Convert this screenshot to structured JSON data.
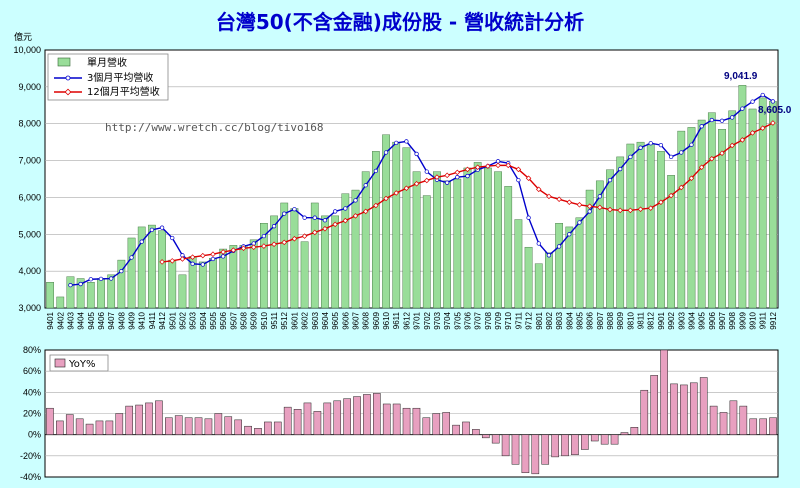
{
  "title": "台灣50(不含金融)成份股 - 營收統計分析",
  "watermark": "http://www.wretch.cc/blog/tivo168",
  "chart_data": [
    {
      "type": "bar+line",
      "ylabel": "億元",
      "ylim": [
        3000,
        10000
      ],
      "yticks": [
        "3,000",
        "4,000",
        "5,000",
        "6,000",
        "7,000",
        "8,000",
        "9,000",
        "10,000"
      ],
      "legend_position": "top-left",
      "grid": true,
      "categories": [
        "9401",
        "9402",
        "9403",
        "9404",
        "9405",
        "9406",
        "9407",
        "9408",
        "9409",
        "9410",
        "9411",
        "9412",
        "9501",
        "9502",
        "9503",
        "9504",
        "9505",
        "9506",
        "9507",
        "9508",
        "9509",
        "9510",
        "9511",
        "9512",
        "9601",
        "9602",
        "9603",
        "9604",
        "9605",
        "9606",
        "9607",
        "9608",
        "9609",
        "9610",
        "9611",
        "9612",
        "9701",
        "9702",
        "9703",
        "9704",
        "9705",
        "9706",
        "9707",
        "9708",
        "9709",
        "9710",
        "9711",
        "9712",
        "9801",
        "9802",
        "9803",
        "9804",
        "9805",
        "9806",
        "9807",
        "9808",
        "9809",
        "9810",
        "9811",
        "9812",
        "9901",
        "9902",
        "9903",
        "9904",
        "9905",
        "9906",
        "9907",
        "9908",
        "9909",
        "9910",
        "9911",
        "9912"
      ],
      "series": [
        {
          "name": "單月營收",
          "kind": "bar",
          "color": "#99dd99",
          "values": [
            3700,
            3300,
            3850,
            3800,
            3700,
            3800,
            3900,
            4300,
            4900,
            5200,
            5250,
            5100,
            4300,
            3900,
            4400,
            4250,
            4350,
            4600,
            4700,
            4700,
            4850,
            5300,
            5500,
            5850,
            5700,
            4800,
            5850,
            5500,
            5500,
            6100,
            6200,
            6700,
            7250,
            7700,
            7500,
            7350,
            6700,
            6050,
            6700,
            6450,
            6500,
            6800,
            6950,
            6800,
            6700,
            6300,
            5400,
            4650,
            4200,
            4500,
            5300,
            5200,
            5450,
            6200,
            6450,
            6750,
            7100,
            7450,
            7500,
            7450,
            7250,
            6600,
            7800,
            7900,
            8100,
            8300,
            7850,
            8350,
            9041.9,
            8400,
            8700,
            8605
          ]
        },
        {
          "name": "3個月平均營收",
          "kind": "line",
          "color": "#0000cc",
          "values": [
            null,
            null,
            3620,
            3650,
            3780,
            3790,
            3800,
            4000,
            4370,
            4800,
            5120,
            5180,
            4900,
            4430,
            4200,
            4180,
            4330,
            4400,
            4550,
            4670,
            4750,
            4950,
            5220,
            5560,
            5680,
            5450,
            5450,
            5380,
            5620,
            5700,
            5920,
            6330,
            6720,
            7220,
            7480,
            7520,
            7180,
            6700,
            6480,
            6400,
            6550,
            6580,
            6750,
            6850,
            6980,
            6930,
            6470,
            5450,
            4750,
            4430,
            4670,
            5000,
            5320,
            5620,
            6030,
            6470,
            6770,
            7100,
            7350,
            7470,
            7420,
            7100,
            7220,
            7430,
            7930,
            8100,
            8080,
            8170,
            8410,
            8600,
            8780,
            8605
          ]
        },
        {
          "name": "12個月平均營收",
          "kind": "line",
          "color": "#dd0000",
          "values": [
            null,
            null,
            null,
            null,
            null,
            null,
            null,
            null,
            null,
            null,
            null,
            4250,
            4280,
            4330,
            4380,
            4420,
            4460,
            4520,
            4570,
            4620,
            4650,
            4680,
            4730,
            4780,
            4880,
            4950,
            5050,
            5150,
            5270,
            5370,
            5500,
            5620,
            5780,
            5970,
            6120,
            6250,
            6370,
            6460,
            6550,
            6600,
            6680,
            6760,
            6820,
            6850,
            6870,
            6870,
            6760,
            6520,
            6220,
            6030,
            5950,
            5870,
            5800,
            5760,
            5730,
            5670,
            5650,
            5650,
            5680,
            5710,
            5870,
            6050,
            6270,
            6520,
            6820,
            7050,
            7200,
            7410,
            7560,
            7750,
            7880,
            8020
          ]
        }
      ],
      "annotations": [
        "9,041.9",
        "8,605.0"
      ]
    },
    {
      "type": "bar",
      "ylim": [
        -40,
        80
      ],
      "yticks": [
        "-40%",
        "-20%",
        "0%",
        "20%",
        "40%",
        "60%",
        "80%"
      ],
      "legend_position": "top-left",
      "grid": true,
      "series": [
        {
          "name": "YoY%",
          "color": "#e8a0c0",
          "values": [
            25,
            13,
            19,
            15,
            10,
            13,
            13,
            20,
            27,
            28,
            30,
            32,
            16,
            18,
            16,
            16,
            15,
            20,
            17,
            14,
            8,
            6,
            12,
            12,
            26,
            24,
            30,
            22,
            30,
            32,
            34,
            36,
            38,
            39,
            29,
            29,
            25,
            25,
            16,
            20,
            21,
            9,
            12,
            5,
            -3,
            -8,
            -20,
            -28,
            -36,
            -37,
            -28,
            -21,
            -20,
            -19,
            -14,
            -6,
            -9,
            -9,
            2,
            7,
            42,
            56,
            80,
            48,
            47,
            49,
            54,
            27,
            21,
            32,
            27,
            15,
            15,
            16
          ]
        }
      ]
    }
  ]
}
